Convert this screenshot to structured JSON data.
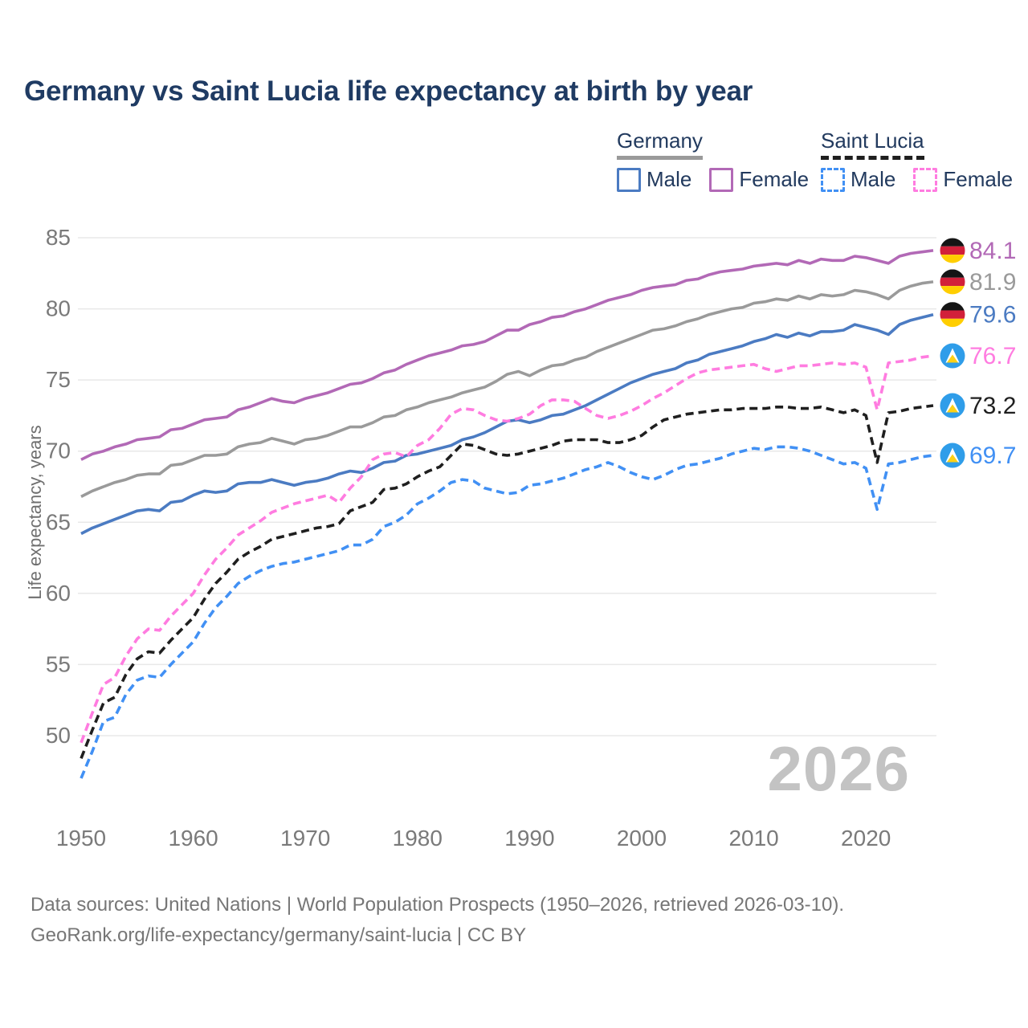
{
  "title": "Germany vs Saint Lucia life expectancy at birth by year",
  "watermark": "2026",
  "legend": {
    "groups": [
      {
        "label": "Germany",
        "line_style": "solid",
        "underline_color": "#9a9a9a",
        "items": [
          {
            "label": "Male",
            "color": "#4b7bc2",
            "dashed": false
          },
          {
            "label": "Female",
            "color": "#b269b6",
            "dashed": false
          }
        ]
      },
      {
        "label": "Saint Lucia",
        "line_style": "dashed",
        "underline_color": "#1f1f1f",
        "items": [
          {
            "label": "Male",
            "color": "#4190f4",
            "dashed": true
          },
          {
            "label": "Female",
            "color": "#ff7ce0",
            "dashed": true
          }
        ]
      }
    ]
  },
  "footer": {
    "line1": "Data sources: United Nations | World Population Prospects (1950–2026, retrieved 2026-03-10).",
    "line2": "GeoRank.org/life-expectancy/germany/saint-lucia | CC BY"
  },
  "chart_data": {
    "type": "line",
    "title": "Germany vs Saint Lucia life expectancy at birth by year",
    "xlabel": "",
    "ylabel": "Life expectancy, years",
    "x_start": 1950,
    "x_end": 2026,
    "x_step": 1,
    "xlim": [
      1950,
      2026
    ],
    "ylim": [
      46,
      86
    ],
    "xticks": [
      1950,
      1960,
      1970,
      1980,
      1990,
      2000,
      2010,
      2020
    ],
    "yticks": [
      50,
      55,
      60,
      65,
      70,
      75,
      80,
      85
    ],
    "grid": "horizontal",
    "legend_position": "top-right",
    "series": [
      {
        "name": "Germany Female",
        "country": "Germany",
        "sex": "Female",
        "color": "#b269b6",
        "dashed": false,
        "flag": "germany",
        "end_label": "84.1",
        "values": [
          69.4,
          69.8,
          70.0,
          70.3,
          70.5,
          70.8,
          70.9,
          71.0,
          71.5,
          71.6,
          71.9,
          72.2,
          72.3,
          72.4,
          72.9,
          73.1,
          73.4,
          73.7,
          73.5,
          73.4,
          73.7,
          73.9,
          74.1,
          74.4,
          74.7,
          74.8,
          75.1,
          75.5,
          75.7,
          76.1,
          76.4,
          76.7,
          76.9,
          77.1,
          77.4,
          77.5,
          77.7,
          78.1,
          78.5,
          78.5,
          78.9,
          79.1,
          79.4,
          79.5,
          79.8,
          80.0,
          80.3,
          80.6,
          80.8,
          81.0,
          81.3,
          81.5,
          81.6,
          81.7,
          82.0,
          82.1,
          82.4,
          82.6,
          82.7,
          82.8,
          83.0,
          83.1,
          83.2,
          83.1,
          83.4,
          83.2,
          83.5,
          83.4,
          83.4,
          83.7,
          83.6,
          83.4,
          83.2,
          83.7,
          83.9,
          84.0,
          84.1
        ]
      },
      {
        "name": "Germany Both sexes",
        "country": "Germany",
        "sex": "Both",
        "color": "#9a9a9a",
        "dashed": false,
        "flag": "germany",
        "end_label": "81.9",
        "values": [
          66.8,
          67.2,
          67.5,
          67.8,
          68.0,
          68.3,
          68.4,
          68.4,
          69.0,
          69.1,
          69.4,
          69.7,
          69.7,
          69.8,
          70.3,
          70.5,
          70.6,
          70.9,
          70.7,
          70.5,
          70.8,
          70.9,
          71.1,
          71.4,
          71.7,
          71.7,
          72.0,
          72.4,
          72.5,
          72.9,
          73.1,
          73.4,
          73.6,
          73.8,
          74.1,
          74.3,
          74.5,
          74.9,
          75.4,
          75.6,
          75.3,
          75.7,
          76.0,
          76.1,
          76.4,
          76.6,
          77.0,
          77.3,
          77.6,
          77.9,
          78.2,
          78.5,
          78.6,
          78.8,
          79.1,
          79.3,
          79.6,
          79.8,
          80.0,
          80.1,
          80.4,
          80.5,
          80.7,
          80.6,
          80.9,
          80.7,
          81.0,
          80.9,
          81.0,
          81.3,
          81.2,
          81.0,
          80.7,
          81.3,
          81.6,
          81.8,
          81.9
        ]
      },
      {
        "name": "Germany Male",
        "country": "Germany",
        "sex": "Male",
        "color": "#4b7bc2",
        "dashed": false,
        "flag": "germany",
        "end_label": "79.6",
        "values": [
          64.2,
          64.6,
          64.9,
          65.2,
          65.5,
          65.8,
          65.9,
          65.8,
          66.4,
          66.5,
          66.9,
          67.2,
          67.1,
          67.2,
          67.7,
          67.8,
          67.8,
          68.0,
          67.8,
          67.6,
          67.8,
          67.9,
          68.1,
          68.4,
          68.6,
          68.5,
          68.8,
          69.2,
          69.3,
          69.7,
          69.8,
          70.0,
          70.2,
          70.4,
          70.8,
          71.0,
          71.3,
          71.7,
          72.1,
          72.2,
          72.0,
          72.2,
          72.5,
          72.6,
          72.9,
          73.2,
          73.6,
          74.0,
          74.4,
          74.8,
          75.1,
          75.4,
          75.6,
          75.8,
          76.2,
          76.4,
          76.8,
          77.0,
          77.2,
          77.4,
          77.7,
          77.9,
          78.2,
          78.0,
          78.3,
          78.1,
          78.4,
          78.4,
          78.5,
          78.9,
          78.7,
          78.5,
          78.2,
          78.9,
          79.2,
          79.4,
          79.6
        ]
      },
      {
        "name": "Saint Lucia Female",
        "country": "Saint Lucia",
        "sex": "Female",
        "color": "#ff7ce0",
        "dashed": true,
        "flag": "saint-lucia",
        "end_label": "76.7",
        "values": [
          49.5,
          51.6,
          53.6,
          54.1,
          55.6,
          56.8,
          57.5,
          57.4,
          58.4,
          59.2,
          60.0,
          61.3,
          62.4,
          63.2,
          64.1,
          64.6,
          65.1,
          65.7,
          66.0,
          66.3,
          66.5,
          66.7,
          66.9,
          66.4,
          67.4,
          68.2,
          69.4,
          69.8,
          69.9,
          69.6,
          70.4,
          70.8,
          71.6,
          72.6,
          73.0,
          72.9,
          72.5,
          72.2,
          72.1,
          72.3,
          72.6,
          73.2,
          73.6,
          73.6,
          73.5,
          73.0,
          72.5,
          72.3,
          72.5,
          72.8,
          73.2,
          73.7,
          74.1,
          74.6,
          75.1,
          75.5,
          75.7,
          75.8,
          75.9,
          76.0,
          76.1,
          75.8,
          75.6,
          75.8,
          76.0,
          76.0,
          76.1,
          76.2,
          76.1,
          76.2,
          75.9,
          72.9,
          76.2,
          76.3,
          76.4,
          76.6,
          76.7
        ]
      },
      {
        "name": "Saint Lucia Both sexes",
        "country": "Saint Lucia",
        "sex": "Both",
        "color": "#1f1f1f",
        "dashed": true,
        "flag": "saint-lucia",
        "end_label": "73.2",
        "values": [
          48.4,
          50.4,
          52.3,
          52.7,
          54.3,
          55.4,
          55.9,
          55.8,
          56.7,
          57.5,
          58.3,
          59.6,
          60.7,
          61.5,
          62.4,
          62.9,
          63.3,
          63.8,
          64.0,
          64.2,
          64.4,
          64.6,
          64.7,
          64.9,
          65.8,
          66.1,
          66.4,
          67.3,
          67.4,
          67.7,
          68.2,
          68.6,
          68.9,
          69.7,
          70.5,
          70.4,
          70.1,
          69.8,
          69.7,
          69.8,
          70.0,
          70.2,
          70.4,
          70.7,
          70.8,
          70.8,
          70.8,
          70.6,
          70.6,
          70.8,
          71.1,
          71.7,
          72.2,
          72.4,
          72.6,
          72.7,
          72.8,
          72.9,
          72.9,
          73.0,
          73.0,
          73.0,
          73.1,
          73.1,
          73.0,
          73.0,
          73.1,
          72.9,
          72.7,
          72.9,
          72.5,
          69.2,
          72.7,
          72.8,
          73.0,
          73.1,
          73.2
        ]
      },
      {
        "name": "Saint Lucia Male",
        "country": "Saint Lucia",
        "sex": "Male",
        "color": "#4190f4",
        "dashed": true,
        "flag": "saint-lucia",
        "end_label": "69.7",
        "values": [
          47.0,
          48.9,
          51.0,
          51.3,
          52.9,
          53.9,
          54.2,
          54.1,
          55.0,
          55.8,
          56.6,
          57.9,
          59.0,
          59.8,
          60.7,
          61.2,
          61.6,
          61.9,
          62.1,
          62.2,
          62.4,
          62.6,
          62.8,
          63.0,
          63.4,
          63.4,
          63.8,
          64.7,
          65.0,
          65.5,
          66.3,
          66.7,
          67.2,
          67.8,
          68.0,
          67.9,
          67.4,
          67.2,
          67.0,
          67.1,
          67.6,
          67.7,
          67.9,
          68.1,
          68.4,
          68.7,
          68.9,
          69.2,
          68.9,
          68.5,
          68.2,
          68.0,
          68.3,
          68.7,
          69.0,
          69.1,
          69.3,
          69.5,
          69.8,
          70.0,
          70.2,
          70.1,
          70.3,
          70.3,
          70.2,
          70.0,
          69.7,
          69.4,
          69.1,
          69.2,
          68.8,
          65.9,
          69.1,
          69.2,
          69.4,
          69.6,
          69.7
        ]
      }
    ]
  }
}
